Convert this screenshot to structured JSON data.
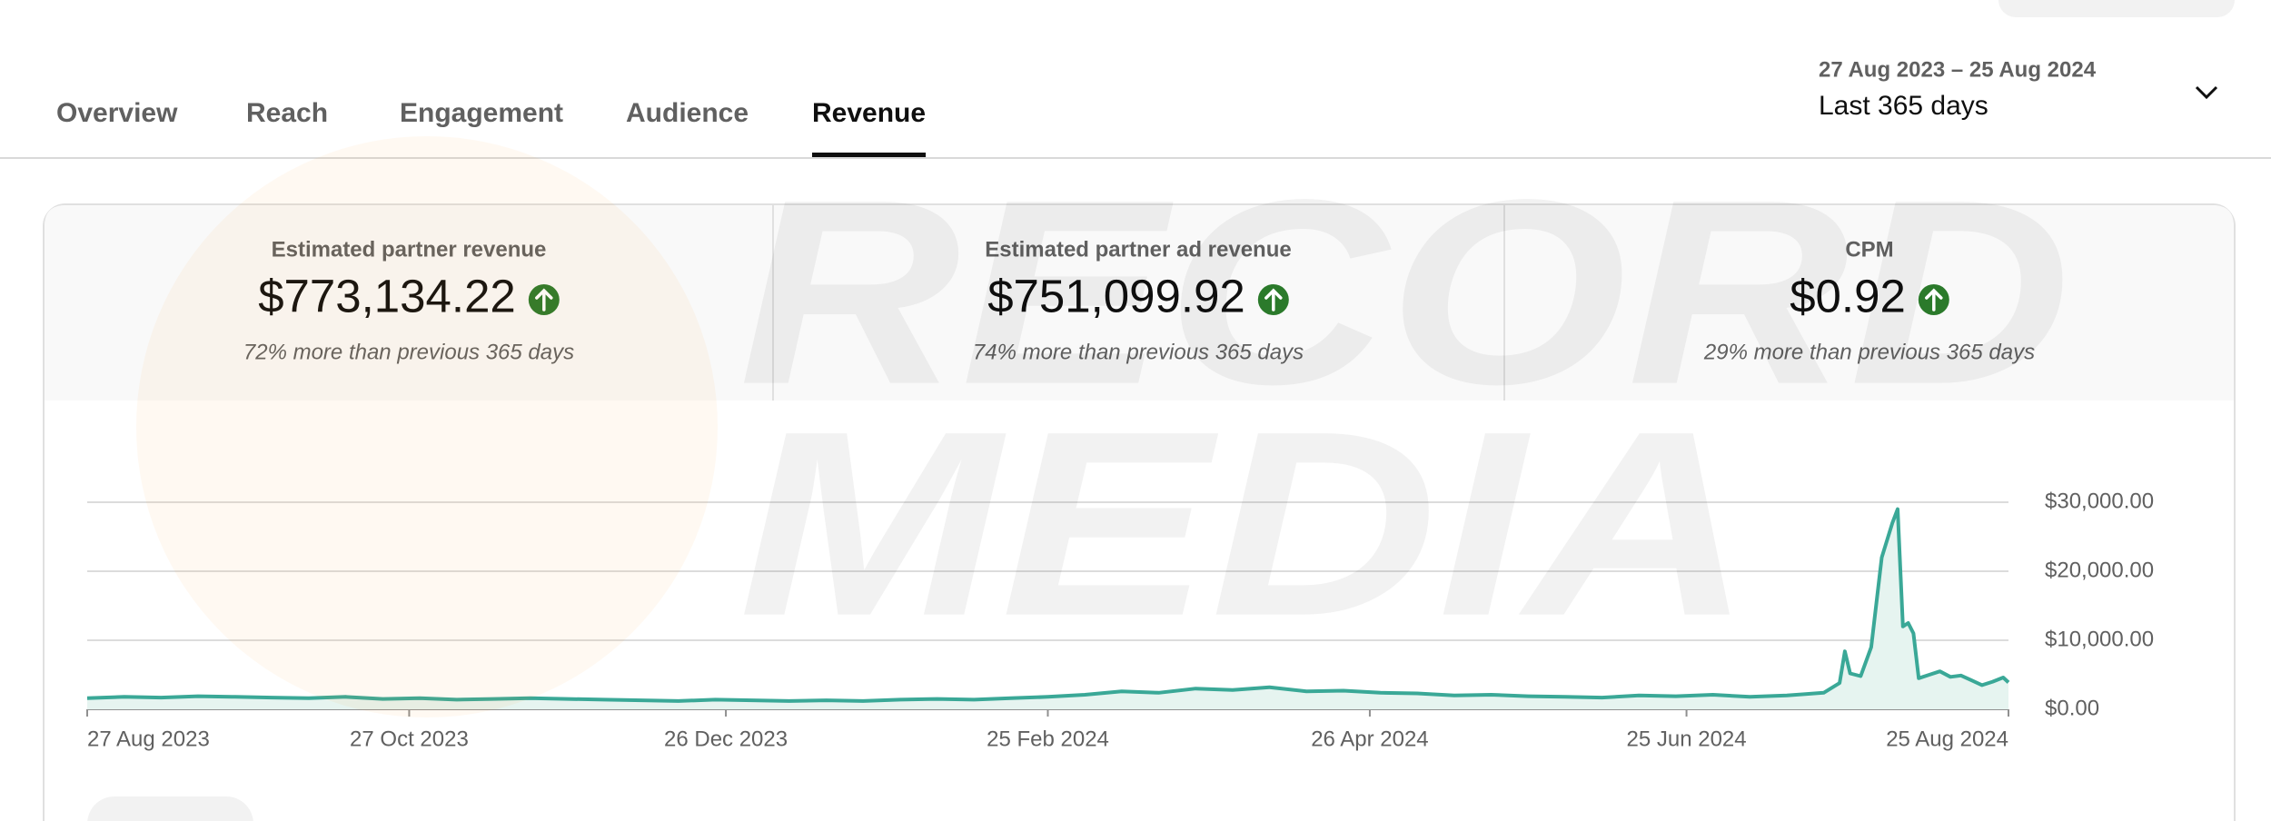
{
  "tabs": [
    "Overview",
    "Reach",
    "Engagement",
    "Audience",
    "Revenue"
  ],
  "active_tab": 4,
  "date_range": {
    "range": "27 Aug 2023 – 25 Aug 2024",
    "label": "Last 365 days"
  },
  "metrics": [
    {
      "label": "Estimated partner revenue",
      "value": "$773,134.22",
      "change": "72% more than previous 365 days"
    },
    {
      "label": "Estimated partner ad revenue",
      "value": "$751,099.92",
      "change": "74% more than previous 365 days"
    },
    {
      "label": "CPM",
      "value": "$0.92",
      "change": "29% more than previous 365 days"
    }
  ],
  "watermark": [
    "RECORD",
    "MEDIA"
  ],
  "chart_data": {
    "type": "line",
    "x": [
      "2023-08-27",
      "2023-09-03",
      "2023-09-10",
      "2023-09-17",
      "2023-09-24",
      "2023-10-01",
      "2023-10-08",
      "2023-10-15",
      "2023-10-22",
      "2023-10-29",
      "2023-11-05",
      "2023-11-12",
      "2023-11-19",
      "2023-11-26",
      "2023-12-03",
      "2023-12-10",
      "2023-12-17",
      "2023-12-24",
      "2023-12-31",
      "2024-01-07",
      "2024-01-14",
      "2024-01-21",
      "2024-01-28",
      "2024-02-04",
      "2024-02-11",
      "2024-02-18",
      "2024-02-25",
      "2024-03-03",
      "2024-03-10",
      "2024-03-17",
      "2024-03-24",
      "2024-03-31",
      "2024-04-07",
      "2024-04-14",
      "2024-04-21",
      "2024-04-28",
      "2024-05-05",
      "2024-05-12",
      "2024-05-19",
      "2024-05-26",
      "2024-06-02",
      "2024-06-09",
      "2024-06-16",
      "2024-06-23",
      "2024-06-30",
      "2024-07-07",
      "2024-07-14",
      "2024-07-21",
      "2024-07-24",
      "2024-07-25",
      "2024-07-26",
      "2024-07-28",
      "2024-07-30",
      "2024-08-01",
      "2024-08-03",
      "2024-08-04",
      "2024-08-05",
      "2024-08-06",
      "2024-08-07",
      "2024-08-08",
      "2024-08-10",
      "2024-08-12",
      "2024-08-14",
      "2024-08-16",
      "2024-08-18",
      "2024-08-20",
      "2024-08-22",
      "2024-08-24",
      "2024-08-25"
    ],
    "series": [
      {
        "color": "#3aa897",
        "fill": "#e6f4f0",
        "values": [
          1600,
          1800,
          1700,
          1900,
          1800,
          1700,
          1600,
          1800,
          1500,
          1600,
          1400,
          1500,
          1600,
          1500,
          1400,
          1300,
          1200,
          1400,
          1300,
          1200,
          1300,
          1200,
          1400,
          1500,
          1400,
          1600,
          1800,
          2100,
          2600,
          2400,
          3000,
          2800,
          3200,
          2600,
          2700,
          2400,
          2300,
          2000,
          2100,
          1900,
          1800,
          1700,
          2000,
          1900,
          2100,
          1800,
          2000,
          2400,
          3800,
          8400,
          5200,
          4800,
          9000,
          22000,
          27000,
          29000,
          12000,
          12500,
          11000,
          4500,
          5000,
          5500,
          4700,
          4900,
          4200,
          3500,
          4000,
          4600,
          3900
        ]
      }
    ],
    "xlim": [
      "2023-08-27",
      "2024-08-25"
    ],
    "xticks": [
      {
        "value": "2023-08-27",
        "label": "27 Aug 2023"
      },
      {
        "value": "2023-10-27",
        "label": "27 Oct 2023"
      },
      {
        "value": "2023-12-26",
        "label": "26 Dec 2023"
      },
      {
        "value": "2024-02-25",
        "label": "25 Feb 2024"
      },
      {
        "value": "2024-04-26",
        "label": "26 Apr 2024"
      },
      {
        "value": "2024-06-25",
        "label": "25 Jun 2024"
      },
      {
        "value": "2024-08-25",
        "label": "25 Aug 2024"
      }
    ],
    "ylim": [
      0,
      30000
    ],
    "yticks": [
      {
        "value": 0,
        "label": "$0.00"
      },
      {
        "value": 10000,
        "label": "$10,000.00"
      },
      {
        "value": 20000,
        "label": "$20,000.00"
      },
      {
        "value": 30000,
        "label": "$30,000.00"
      }
    ],
    "grid": true
  }
}
